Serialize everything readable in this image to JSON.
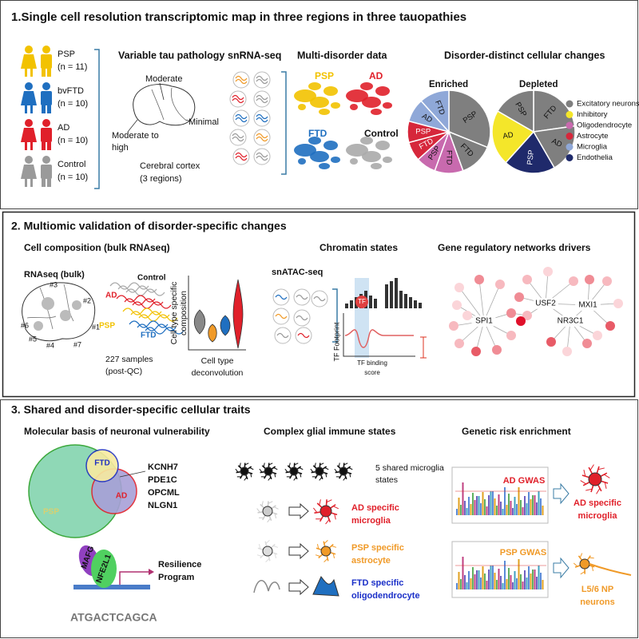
{
  "panel1": {
    "title": "1.Single cell resolution transcriptomic map in three regions in three tauopathies",
    "cohorts": [
      {
        "label": "PSP",
        "n": "(n = 11)"
      },
      {
        "label": "bvFTD",
        "n": "(n = 10)"
      },
      {
        "label": "AD",
        "n": "(n = 10)"
      },
      {
        "label": "Control",
        "n": "(n = 10)"
      }
    ],
    "pathology": {
      "title": "Variable tau pathology",
      "moderate": "Moderate",
      "minimal": "Minimal",
      "moderate_to_high": [
        "Moderate to",
        "high"
      ],
      "region": [
        "Cerebral cortex",
        "(3 regions)"
      ]
    },
    "snrnaseq": "snRNA-seq",
    "multi_disorder": {
      "title": "Multi-disorder data",
      "umaps": [
        "PSP",
        "AD",
        "FTD",
        "Control"
      ]
    },
    "cellular_changes": {
      "title": "Disorder-distinct cellular changes",
      "enriched": {
        "label": "Enriched",
        "slices": [
          "PSP",
          "FTD",
          "FTD",
          "PSP",
          "FTD",
          "PSP",
          "AD",
          "FTD"
        ]
      },
      "depleted": {
        "label": "Depleted",
        "slices": [
          "FTD",
          "AD",
          "PSP",
          "AD",
          "PSP"
        ]
      },
      "legend": [
        "Excitatory neurons",
        "Inhibitory",
        "Oligodendrocyte",
        "Astrocyte",
        "Microglia",
        "Endothelia"
      ]
    }
  },
  "panel2": {
    "title": "2. Multiomic validation of disorder-specific changes",
    "cell_composition": {
      "title": "Cell composition (bulk RNAseq)",
      "bulk": "RNAseq (bulk)",
      "regions": [
        "#3",
        "#2",
        "#1",
        "#6",
        "#5",
        "#4",
        "#7"
      ],
      "groups": [
        "Control",
        "AD",
        "PSP",
        "FTD"
      ],
      "samples": [
        "227 samples",
        "(post-QC)"
      ],
      "y_label": [
        "Cell type specific",
        "composition"
      ],
      "x_label": [
        "Cell type",
        "deconvolution"
      ]
    },
    "chromatin": {
      "title": "Chromatin states",
      "assay": "snATAC-seq",
      "tf": "TF",
      "y_label": "TF Footprint",
      "score": [
        "TF binding",
        "score"
      ]
    },
    "networks": {
      "title": "Gene regulatory networks drivers",
      "drivers": [
        "USF2",
        "MXI1",
        "SPI1",
        "NR3C1"
      ]
    }
  },
  "panel3": {
    "title": "3. Shared and disorder-specific cellular traits",
    "vulnerability": {
      "title": "Molecular basis of neuronal vulnerability",
      "venn": [
        "FTD",
        "AD",
        "PSP"
      ],
      "genes": [
        "KCNH7",
        "PDE1C",
        "OPCML",
        "NLGN1"
      ],
      "factors": [
        "MAFG",
        "NFE2L1"
      ],
      "program": [
        "Resilience",
        "Program"
      ],
      "motif": "ATGACTCAGCA"
    },
    "glial": {
      "title": "Complex glial immune states",
      "shared": [
        "5 shared microglia",
        "states"
      ],
      "specific": [
        [
          "AD specific",
          "microglia"
        ],
        [
          "PSP specific",
          "astrocyte"
        ],
        [
          "FTD specific",
          "oligodendrocyte"
        ]
      ]
    },
    "genetic": {
      "title": "Genetic risk enrichment",
      "gwas": [
        "AD GWAS",
        "PSP GWAS"
      ],
      "targets": [
        [
          "AD specific",
          "microglia"
        ],
        [
          "L5/6 NP",
          "neurons"
        ]
      ]
    }
  }
}
